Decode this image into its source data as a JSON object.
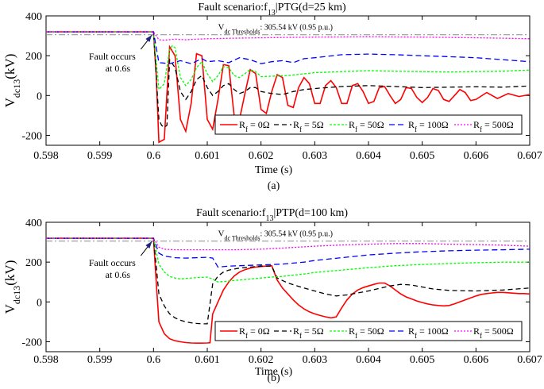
{
  "chart_data": [
    {
      "type": "line",
      "panel_label": "(a)",
      "title_prefix": "Fault scenario:f",
      "title_sub": "13",
      "title_suffix": "|PTG(d=25 km)",
      "xlabel": "Time (s)",
      "ylabel_main": "V",
      "ylabel_sub": "dc13",
      "ylabel_unit": "(kV)",
      "xlim": [
        0.598,
        0.607
      ],
      "ylim": [
        -250,
        400
      ],
      "xticks": [
        "0.598",
        "0.599",
        "0.6",
        "0.601",
        "0.602",
        "0.603",
        "0.604",
        "0.605",
        "0.606",
        "0.607"
      ],
      "yticks": [
        "-200",
        "0",
        "200",
        "400"
      ],
      "threshold": {
        "value": 305.54,
        "label_main": "V",
        "label_sub": "dc Thresholds",
        "label_rest": ": 305.54 kV (0.95 p.u.)"
      },
      "annotation": {
        "line1": "Fault occurs",
        "line2": "at 0.6s",
        "x": 0.6,
        "y": 320
      },
      "legend_position": "bottom-right",
      "series": [
        {
          "name_main": "R",
          "name_sub": "f",
          "name_rest": " = 0Ω",
          "color": "#ff0000",
          "dash": "none",
          "x": [
            0.598,
            0.6,
            0.60005,
            0.6001,
            0.6002,
            0.6003,
            0.6004,
            0.6005,
            0.6006,
            0.6007,
            0.6008,
            0.6009,
            0.601,
            0.6011,
            0.6012,
            0.6013,
            0.6014,
            0.6015,
            0.6016,
            0.6017,
            0.6018,
            0.6019,
            0.602,
            0.6021,
            0.6022,
            0.6023,
            0.6024,
            0.6025,
            0.6026,
            0.6027,
            0.6028,
            0.6029,
            0.603,
            0.6031,
            0.6032,
            0.6033,
            0.6034,
            0.6035,
            0.6036,
            0.6037,
            0.6038,
            0.6039,
            0.604,
            0.6041,
            0.6042,
            0.6043,
            0.6044,
            0.6045,
            0.6046,
            0.6047,
            0.6048,
            0.6049,
            0.605,
            0.6051,
            0.6052,
            0.6053,
            0.6054,
            0.6055,
            0.6056,
            0.6057,
            0.6058,
            0.6059,
            0.606,
            0.6062,
            0.6064,
            0.6066,
            0.6068,
            0.607
          ],
          "y": [
            320,
            320,
            100,
            -235,
            -220,
            245,
            200,
            -120,
            -180,
            -40,
            210,
            200,
            -120,
            -170,
            -20,
            155,
            150,
            -100,
            -120,
            10,
            130,
            110,
            -70,
            -90,
            20,
            105,
            90,
            -50,
            -60,
            40,
            90,
            60,
            -40,
            -40,
            50,
            75,
            40,
            -40,
            -40,
            50,
            60,
            20,
            -40,
            -30,
            40,
            45,
            0,
            -40,
            -20,
            40,
            35,
            -10,
            -35,
            -10,
            35,
            25,
            -20,
            -30,
            0,
            30,
            15,
            -25,
            -20,
            15,
            -15,
            10,
            -5,
            5
          ]
        },
        {
          "name_main": "R",
          "name_sub": "f",
          "name_rest": " = 5Ω",
          "color": "#000000",
          "dash": "6,4",
          "x": [
            0.598,
            0.6,
            0.6001,
            0.60015,
            0.6002,
            0.60025,
            0.6003,
            0.6004,
            0.6005,
            0.6006,
            0.6007,
            0.6008,
            0.6009,
            0.601,
            0.6011,
            0.6012,
            0.6013,
            0.6014,
            0.6015,
            0.6016,
            0.6017,
            0.6018,
            0.6019,
            0.602,
            0.6022,
            0.6024,
            0.6026,
            0.6028,
            0.603,
            0.6035,
            0.604,
            0.6045,
            0.605,
            0.6055,
            0.606,
            0.6065,
            0.607
          ],
          "y": [
            320,
            320,
            -120,
            -150,
            -160,
            -150,
            180,
            140,
            20,
            -20,
            20,
            80,
            100,
            40,
            0,
            20,
            50,
            60,
            30,
            10,
            20,
            40,
            40,
            20,
            10,
            5,
            20,
            30,
            35,
            45,
            50,
            45,
            40,
            42,
            44,
            42,
            48
          ]
        },
        {
          "name_main": "R",
          "name_sub": "f",
          "name_rest": " = 50Ω",
          "color": "#00ff00",
          "dash": "3,2",
          "x": [
            0.598,
            0.6,
            0.6001,
            0.6002,
            0.6003,
            0.60035,
            0.6004,
            0.6005,
            0.6006,
            0.6007,
            0.6008,
            0.6009,
            0.601,
            0.6011,
            0.6012,
            0.6013,
            0.6014,
            0.6015,
            0.6016,
            0.6017,
            0.6018,
            0.6019,
            0.602,
            0.6025,
            0.603,
            0.6035,
            0.604,
            0.6045,
            0.605,
            0.6055,
            0.606,
            0.6065,
            0.607
          ],
          "y": [
            320,
            320,
            30,
            60,
            230,
            250,
            240,
            90,
            50,
            80,
            140,
            170,
            110,
            70,
            100,
            145,
            140,
            100,
            90,
            110,
            130,
            120,
            95,
            100,
            115,
            120,
            125,
            122,
            120,
            118,
            120,
            122,
            128
          ]
        },
        {
          "name_main": "R",
          "name_sub": "f",
          "name_rest": " = 100Ω",
          "color": "#0000ff",
          "dash": "7,4",
          "x": [
            0.598,
            0.6,
            0.6001,
            0.6003,
            0.6005,
            0.6007,
            0.6009,
            0.601,
            0.6012,
            0.6014,
            0.6016,
            0.6018,
            0.602,
            0.6022,
            0.6024,
            0.6026,
            0.6028,
            0.603,
            0.6035,
            0.604,
            0.6045,
            0.605,
            0.6055,
            0.606,
            0.6065,
            0.607
          ],
          "y": [
            320,
            320,
            165,
            160,
            175,
            160,
            185,
            170,
            175,
            165,
            190,
            180,
            160,
            170,
            175,
            165,
            185,
            190,
            205,
            208,
            205,
            200,
            195,
            190,
            180,
            170
          ]
        },
        {
          "name_main": "R",
          "name_sub": "f",
          "name_rest": " = 500Ω",
          "color": "#ff00ff",
          "dash": "2,2",
          "x": [
            0.598,
            0.6,
            0.6001,
            0.6002,
            0.6004,
            0.6006,
            0.6008,
            0.601,
            0.6015,
            0.602,
            0.6025,
            0.603,
            0.6035,
            0.604,
            0.6045,
            0.605,
            0.6055,
            0.606,
            0.6065,
            0.607
          ],
          "y": [
            320,
            320,
            280,
            278,
            283,
            280,
            283,
            285,
            288,
            290,
            292,
            293,
            294,
            295,
            294,
            293,
            292,
            290,
            288,
            285
          ]
        }
      ]
    },
    {
      "type": "line",
      "panel_label": "(b)",
      "title_prefix": "Fault scenario:f",
      "title_sub": "13",
      "title_suffix": "|PTP(d=100 km)",
      "xlabel": "Time (s)",
      "ylabel_main": "V",
      "ylabel_sub": "dc13",
      "ylabel_unit": "(kV)",
      "xlim": [
        0.598,
        0.607
      ],
      "ylim": [
        -250,
        400
      ],
      "xticks": [
        "0.598",
        "0.599",
        "0.6",
        "0.601",
        "0.602",
        "0.603",
        "0.604",
        "0.605",
        "0.606",
        "0.607"
      ],
      "yticks": [
        "-200",
        "0",
        "200",
        "400"
      ],
      "threshold": {
        "value": 305.54,
        "label_main": "V",
        "label_sub": "dc Thresholds",
        "label_rest": ": 305.54 kV (0.95 p.u.)"
      },
      "annotation": {
        "line1": "Fault occurs",
        "line2": "at 0.6s",
        "x": 0.6,
        "y": 320
      },
      "legend_position": "bottom-right",
      "series": [
        {
          "name_main": "R",
          "name_sub": "f",
          "name_rest": " = 0Ω",
          "color": "#ff0000",
          "dash": "none",
          "x": [
            0.598,
            0.6,
            0.60005,
            0.6001,
            0.6002,
            0.6003,
            0.6004,
            0.6005,
            0.6006,
            0.6007,
            0.6008,
            0.6009,
            0.601,
            0.60105,
            0.6011,
            0.6012,
            0.6013,
            0.6014,
            0.6015,
            0.6016,
            0.6017,
            0.6018,
            0.6019,
            0.602,
            0.6021,
            0.6022,
            0.6023,
            0.6024,
            0.6025,
            0.6026,
            0.6027,
            0.6028,
            0.6029,
            0.603,
            0.6031,
            0.6032,
            0.6033,
            0.6034,
            0.6035,
            0.6036,
            0.6037,
            0.6038,
            0.6039,
            0.604,
            0.6041,
            0.6042,
            0.6043,
            0.6044,
            0.6045,
            0.6046,
            0.6047,
            0.6048,
            0.6049,
            0.605,
            0.6051,
            0.6052,
            0.6053,
            0.6054,
            0.6055,
            0.6056,
            0.6057,
            0.6058,
            0.6059,
            0.606,
            0.6061,
            0.6062,
            0.6063,
            0.6064,
            0.6065,
            0.6066,
            0.6067,
            0.6068,
            0.6069,
            0.607
          ],
          "y": [
            320,
            320,
            100,
            -100,
            -160,
            -185,
            -195,
            -200,
            -204,
            -206,
            -207,
            -207,
            -206,
            -205,
            -60,
            0,
            60,
            100,
            130,
            150,
            162,
            170,
            175,
            178,
            180,
            182,
            110,
            70,
            40,
            10,
            -15,
            -35,
            -50,
            -60,
            -68,
            -75,
            -80,
            -75,
            -30,
            10,
            40,
            60,
            72,
            80,
            88,
            95,
            95,
            80,
            60,
            40,
            25,
            15,
            5,
            -3,
            -10,
            -15,
            -18,
            -20,
            -18,
            -10,
            0,
            10,
            20,
            30,
            38,
            42,
            45,
            48,
            48,
            46,
            44,
            42,
            42,
            40
          ]
        },
        {
          "name_main": "R",
          "name_sub": "f",
          "name_rest": " = 5Ω",
          "color": "#000000",
          "dash": "6,4",
          "x": [
            0.598,
            0.6,
            0.6001,
            0.6002,
            0.6003,
            0.6004,
            0.6005,
            0.6006,
            0.6007,
            0.6008,
            0.6009,
            0.601,
            0.6011,
            0.6012,
            0.6013,
            0.6014,
            0.6016,
            0.6018,
            0.602,
            0.6022,
            0.6023,
            0.6025,
            0.6028,
            0.603,
            0.6032,
            0.6034,
            0.6036,
            0.6038,
            0.604,
            0.6042,
            0.6044,
            0.6046,
            0.6048,
            0.605,
            0.6052,
            0.6055,
            0.606,
            0.6065,
            0.607
          ],
          "y": [
            320,
            320,
            40,
            -20,
            -60,
            -80,
            -92,
            -100,
            -105,
            -108,
            -110,
            -110,
            90,
            130,
            150,
            160,
            170,
            175,
            180,
            180,
            120,
            95,
            70,
            55,
            40,
            30,
            35,
            45,
            55,
            68,
            80,
            88,
            85,
            75,
            65,
            58,
            55,
            60,
            70
          ]
        },
        {
          "name_main": "R",
          "name_sub": "f",
          "name_rest": " = 50Ω",
          "color": "#00ff00",
          "dash": "3,2",
          "x": [
            0.598,
            0.6,
            0.6001,
            0.6002,
            0.6003,
            0.6004,
            0.6005,
            0.6006,
            0.6008,
            0.601,
            0.6011,
            0.6012,
            0.6014,
            0.6016,
            0.6018,
            0.602,
            0.6022,
            0.6024,
            0.6026,
            0.6028,
            0.603,
            0.6035,
            0.604,
            0.6045,
            0.605,
            0.6055,
            0.606,
            0.6065,
            0.607
          ],
          "y": [
            320,
            320,
            190,
            150,
            128,
            120,
            115,
            118,
            122,
            125,
            115,
            100,
            105,
            110,
            115,
            120,
            125,
            128,
            135,
            140,
            148,
            160,
            172,
            182,
            188,
            193,
            197,
            200,
            200
          ]
        },
        {
          "name_main": "R",
          "name_sub": "f",
          "name_rest": " = 100Ω",
          "color": "#0000ff",
          "dash": "7,4",
          "x": [
            0.598,
            0.6,
            0.6001,
            0.6002,
            0.6004,
            0.6006,
            0.6008,
            0.601,
            0.6011,
            0.6012,
            0.6014,
            0.6016,
            0.6018,
            0.602,
            0.6022,
            0.6024,
            0.6026,
            0.6028,
            0.603,
            0.6035,
            0.604,
            0.6045,
            0.605,
            0.6055,
            0.606,
            0.6065,
            0.607
          ],
          "y": [
            320,
            320,
            245,
            230,
            222,
            220,
            222,
            224,
            220,
            175,
            180,
            182,
            184,
            186,
            188,
            190,
            195,
            200,
            208,
            222,
            236,
            245,
            252,
            257,
            260,
            262,
            265
          ]
        },
        {
          "name_main": "R",
          "name_sub": "f",
          "name_rest": " = 500Ω",
          "color": "#ff00ff",
          "dash": "2,2",
          "x": [
            0.598,
            0.6,
            0.6001,
            0.6002,
            0.6004,
            0.6006,
            0.6008,
            0.601,
            0.6012,
            0.6015,
            0.602,
            0.6025,
            0.603,
            0.6035,
            0.604,
            0.6045,
            0.605,
            0.6055,
            0.606,
            0.6065,
            0.607
          ],
          "y": [
            320,
            320,
            275,
            265,
            262,
            262,
            262,
            262,
            262,
            262,
            265,
            272,
            280,
            286,
            290,
            293,
            293,
            290,
            288,
            285,
            280
          ]
        }
      ]
    }
  ]
}
